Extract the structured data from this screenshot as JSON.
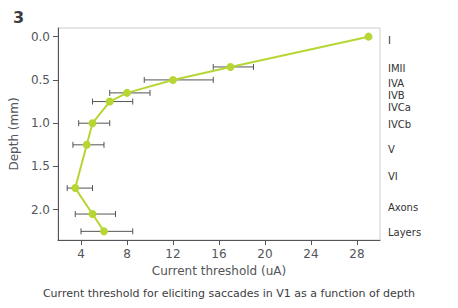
{
  "chart_data": {
    "type": "line",
    "title": "3",
    "xlabel": "Current threshold (uA)",
    "ylabel": "Depth (mm)",
    "caption": "Current threshold for eliciting saccades in V1 as a function of depth",
    "x": [
      29.0,
      17.0,
      12.0,
      8.0,
      6.5,
      5.0,
      4.5,
      3.5,
      5.0,
      6.0
    ],
    "values": [
      0.0,
      0.35,
      0.5,
      0.65,
      0.75,
      1.0,
      1.25,
      1.75,
      2.05,
      2.25
    ],
    "xerr_neg": [
      0.0,
      1.5,
      2.5,
      1.5,
      1.5,
      1.2,
      1.2,
      0.7,
      1.5,
      2.0
    ],
    "xerr_pos": [
      0.0,
      2.0,
      3.5,
      2.0,
      2.0,
      1.5,
      1.5,
      1.5,
      2.0,
      2.5
    ],
    "xlim": [
      2,
      30
    ],
    "xticks": [
      4,
      8,
      12,
      16,
      20,
      24,
      28
    ],
    "ylim": [
      2.35,
      -0.1
    ],
    "yticks": [
      {
        "value": 0,
        "label": "0.0"
      },
      0.5,
      {
        "value": 1,
        "label": "1.0"
      },
      1.5,
      {
        "value": 2,
        "label": "2.0"
      }
    ],
    "annotations": [
      {
        "text": "I",
        "y": 0.04
      },
      {
        "text": "IMII",
        "y": 0.37
      },
      {
        "text": "IVA",
        "y": 0.54
      },
      {
        "text": "IVB",
        "y": 0.68
      },
      {
        "text": "IVCa",
        "y": 0.82
      },
      {
        "text": "IVCb",
        "y": 1.02
      },
      {
        "text": "V",
        "y": 1.3
      },
      {
        "text": "VI",
        "y": 1.62
      },
      {
        "text": "Axons",
        "y": 1.97
      },
      {
        "text": "Layers",
        "y": 2.26
      }
    ],
    "marker": "circle",
    "grid": false
  }
}
